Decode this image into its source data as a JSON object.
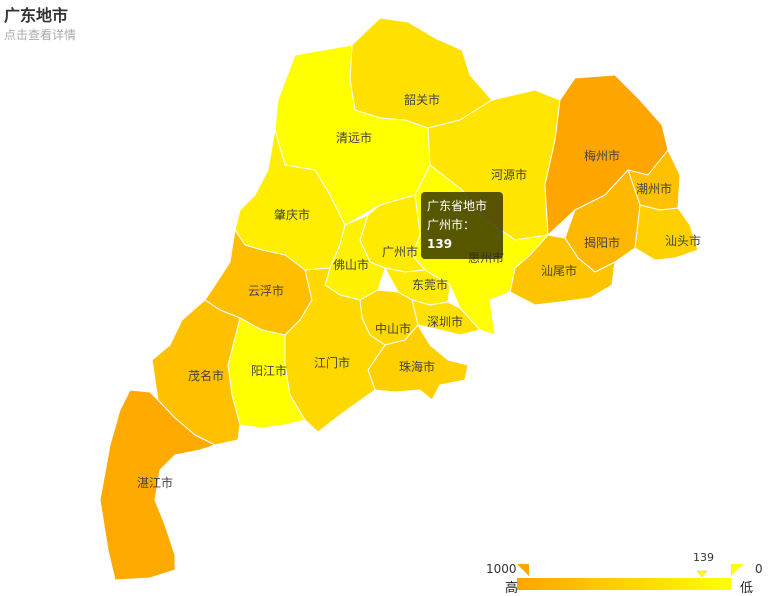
{
  "title": "广东地市",
  "subtitle": "点击查看详情",
  "tooltip": {
    "header": "广东省地市",
    "city": "广州市",
    "separator": "：",
    "value": "139"
  },
  "legend": {
    "max": "1000",
    "min": "0",
    "high_label": "高",
    "low_label": "低",
    "current": "139",
    "color_high": "#ffa500",
    "color_low": "#ffff00"
  },
  "regions": [
    {
      "name": "韶关市",
      "color": "#ffe000"
    },
    {
      "name": "清远市",
      "color": "#ffff00"
    },
    {
      "name": "河源市",
      "color": "#ffe500"
    },
    {
      "name": "梅州市",
      "color": "#ffa500"
    },
    {
      "name": "潮州市",
      "color": "#ffc000"
    },
    {
      "name": "汕头市",
      "color": "#ffd000"
    },
    {
      "name": "揭阳市",
      "color": "#ffb800"
    },
    {
      "name": "汕尾市",
      "color": "#ffc400"
    },
    {
      "name": "惠州市",
      "color": "#ffff00"
    },
    {
      "name": "肇庆市",
      "color": "#ffee00"
    },
    {
      "name": "广州市",
      "color": "#ffea00"
    },
    {
      "name": "佛山市",
      "color": "#fff200"
    },
    {
      "name": "东莞市",
      "color": "#ffea00"
    },
    {
      "name": "深圳市",
      "color": "#ffe000"
    },
    {
      "name": "中山市",
      "color": "#ffd800"
    },
    {
      "name": "珠海市",
      "color": "#ffd000"
    },
    {
      "name": "云浮市",
      "color": "#ffbe00"
    },
    {
      "name": "江门市",
      "color": "#ffd800"
    },
    {
      "name": "阳江市",
      "color": "#ffff00"
    },
    {
      "name": "茂名市",
      "color": "#ffc000"
    },
    {
      "name": "湛江市",
      "color": "#ffaa00"
    }
  ]
}
